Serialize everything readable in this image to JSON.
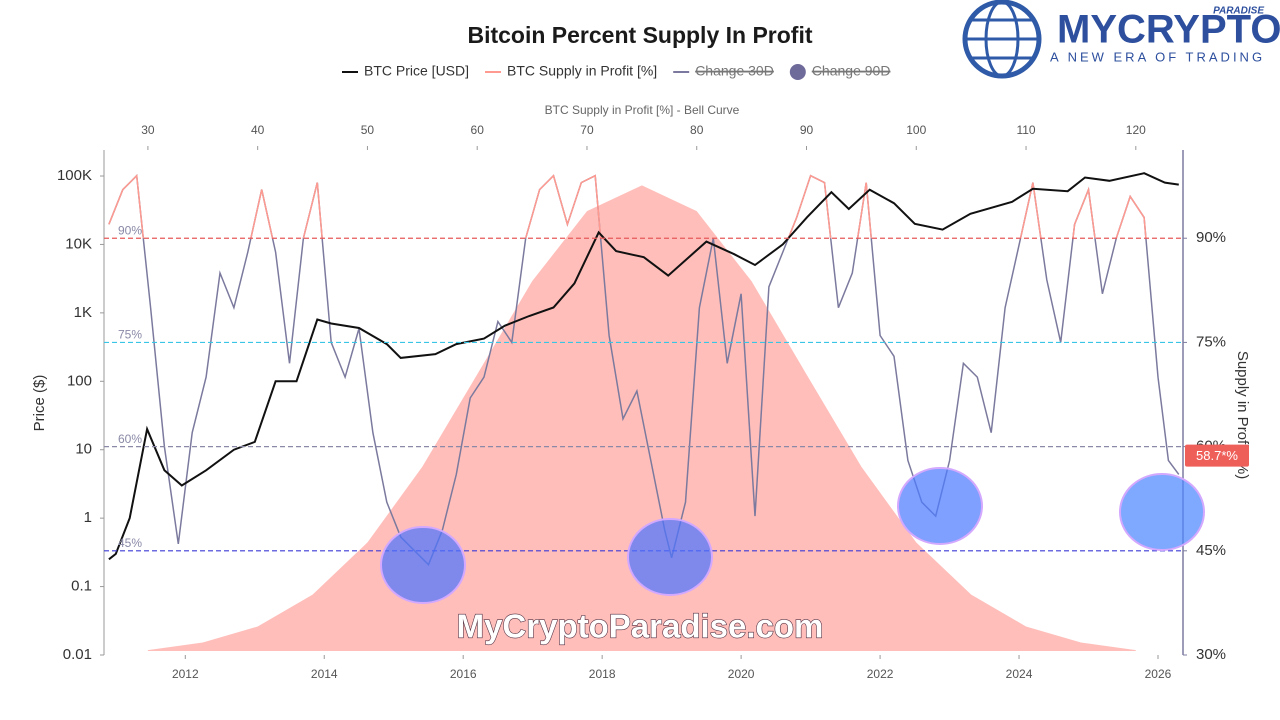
{
  "logo": {
    "name": "MYCRYPTO",
    "tag": "PARADISE",
    "slogan": "A NEW ERA OF TRADING"
  },
  "watermark": "MyCryptoParadise.com",
  "chart_data": {
    "type": "line",
    "title": "Bitcoin Percent Supply In Profit",
    "x_label_top": "BTC Supply in Profit [%] - Bell Curve",
    "y_label": "Price ($)",
    "y2_label": "Supply in Profit (%)",
    "log_y": true,
    "xlim": [
      2010.83,
      2026.36
    ],
    "xticks": [
      2012,
      2014,
      2016,
      2018,
      2020,
      2022,
      2024,
      2026
    ],
    "x2lim": [
      26,
      124.3
    ],
    "x2ticks": [
      30,
      40,
      50,
      60,
      70,
      80,
      90,
      100,
      110,
      120
    ],
    "ylim": [
      0.01,
      240000
    ],
    "yticks": [
      0.01,
      0.1,
      1,
      10,
      100,
      {
        "value": 1000,
        "label": "1K"
      },
      {
        "value": 10000,
        "label": "10K"
      },
      {
        "value": 100000,
        "label": "100K"
      }
    ],
    "y2lim": [
      30,
      102.7
    ],
    "y2ticks": [
      {
        "value": 30,
        "label": "30%"
      },
      {
        "value": 45,
        "label": "45%"
      },
      {
        "value": 60,
        "label": "60%"
      },
      {
        "value": 75,
        "label": "75%"
      },
      {
        "value": 90,
        "label": "90%"
      }
    ],
    "reference_lines": [
      {
        "value": 90,
        "label": "90%",
        "color": "#e8595a"
      },
      {
        "value": 75,
        "label": "75%",
        "color": "#39c6e6"
      },
      {
        "value": 60,
        "label": "60%",
        "color": "#8a8aa8"
      },
      {
        "value": 45,
        "label": "45%",
        "color": "#3b3bd6"
      }
    ],
    "current_label": {
      "value": 58.7,
      "label": "58.7*%",
      "color": "#ef5f5a"
    },
    "legend": [
      {
        "name": "BTC Price [USD]",
        "color": "#111111"
      },
      {
        "name": "BTC Supply in Profit [%]",
        "color": "#ff9a90"
      },
      {
        "name": "Change 30D",
        "color": "#7b7a9e",
        "hidden": true
      },
      {
        "name": "Change 90D",
        "color": "#6e6a9a",
        "hidden": true
      }
    ],
    "series": [
      {
        "name": "Bell Curve",
        "color": "#ffb3ae",
        "style": "area",
        "axis": "y2",
        "x_axis": "x2",
        "x": [
          30,
          35,
          40,
          45,
          50,
          55,
          60,
          65,
          70,
          75,
          80,
          85,
          90,
          95,
          100,
          105,
          110,
          115,
          120
        ],
        "values": [
          30.7,
          31.8,
          34.1,
          38.7,
          46.2,
          57.1,
          70.4,
          83.8,
          93.9,
          97.6,
          93.9,
          83.8,
          70.4,
          57.1,
          46.2,
          38.7,
          34.1,
          31.8,
          30.7
        ]
      },
      {
        "name": "BTC Supply in Profit [%]",
        "color": "#7b7a9e",
        "highlight_above": 90,
        "highlight_color": "#ff9a90",
        "axis": "y2",
        "x": [
          2010.9,
          2011.1,
          2011.3,
          2011.5,
          2011.7,
          2011.9,
          2012.1,
          2012.3,
          2012.5,
          2012.7,
          2012.9,
          2013.1,
          2013.3,
          2013.5,
          2013.7,
          2013.9,
          2014.1,
          2014.3,
          2014.5,
          2014.7,
          2014.9,
          2015.1,
          2015.3,
          2015.5,
          2015.7,
          2015.9,
          2016.1,
          2016.3,
          2016.5,
          2016.7,
          2016.9,
          2017.1,
          2017.3,
          2017.5,
          2017.7,
          2017.9,
          2018.1,
          2018.3,
          2018.5,
          2018.7,
          2018.9,
          2019.0,
          2019.2,
          2019.4,
          2019.6,
          2019.8,
          2020.0,
          2020.2,
          2020.4,
          2020.6,
          2020.8,
          2021.0,
          2021.2,
          2021.4,
          2021.6,
          2021.8,
          2022.0,
          2022.2,
          2022.4,
          2022.6,
          2022.8,
          2023.0,
          2023.2,
          2023.4,
          2023.6,
          2023.8,
          2024.0,
          2024.2,
          2024.4,
          2024.6,
          2024.8,
          2025.0,
          2025.2,
          2025.4,
          2025.6,
          2025.8,
          2026.0,
          2026.15,
          2026.3
        ],
        "values": [
          92,
          97,
          99,
          80,
          60,
          46,
          62,
          70,
          85,
          80,
          88,
          97,
          88,
          72,
          90,
          98,
          75,
          70,
          77,
          62,
          52,
          47,
          45,
          43,
          48,
          56,
          67,
          70,
          78,
          75,
          90,
          97,
          99,
          92,
          98,
          99,
          76,
          64,
          68,
          58,
          48,
          44,
          52,
          80,
          90,
          72,
          82,
          50,
          83,
          88,
          93,
          99,
          98,
          80,
          85,
          98,
          76,
          73,
          58,
          52,
          50,
          58,
          72,
          70,
          62,
          80,
          89,
          98,
          84,
          75,
          92,
          97,
          82,
          90,
          96,
          93,
          70,
          58,
          56
        ]
      },
      {
        "name": "BTC Price [USD]",
        "color": "#111111",
        "x": [
          2010.9,
          2011.0,
          2011.2,
          2011.45,
          2011.7,
          2011.95,
          2012.3,
          2012.7,
          2013.0,
          2013.3,
          2013.6,
          2013.9,
          2014.1,
          2014.5,
          2014.9,
          2015.1,
          2015.6,
          2015.9,
          2016.3,
          2016.6,
          2016.95,
          2017.3,
          2017.6,
          2017.95,
          2018.2,
          2018.6,
          2018.95,
          2019.5,
          2019.9,
          2020.2,
          2020.6,
          2020.95,
          2021.3,
          2021.55,
          2021.85,
          2022.2,
          2022.5,
          2022.9,
          2023.3,
          2023.9,
          2024.2,
          2024.7,
          2024.95,
          2025.3,
          2025.8,
          2026.1,
          2026.3
        ],
        "values": [
          0.25,
          0.3,
          1,
          20,
          5,
          3,
          5,
          10,
          13,
          100,
          100,
          800,
          700,
          600,
          350,
          220,
          250,
          350,
          420,
          650,
          900,
          1200,
          2700,
          15000,
          8000,
          6500,
          3500,
          11000,
          7200,
          5000,
          10000,
          25000,
          58000,
          33000,
          63000,
          40000,
          20000,
          16500,
          28000,
          42000,
          65000,
          60000,
          95000,
          85000,
          110000,
          80000,
          75000
        ]
      }
    ]
  }
}
